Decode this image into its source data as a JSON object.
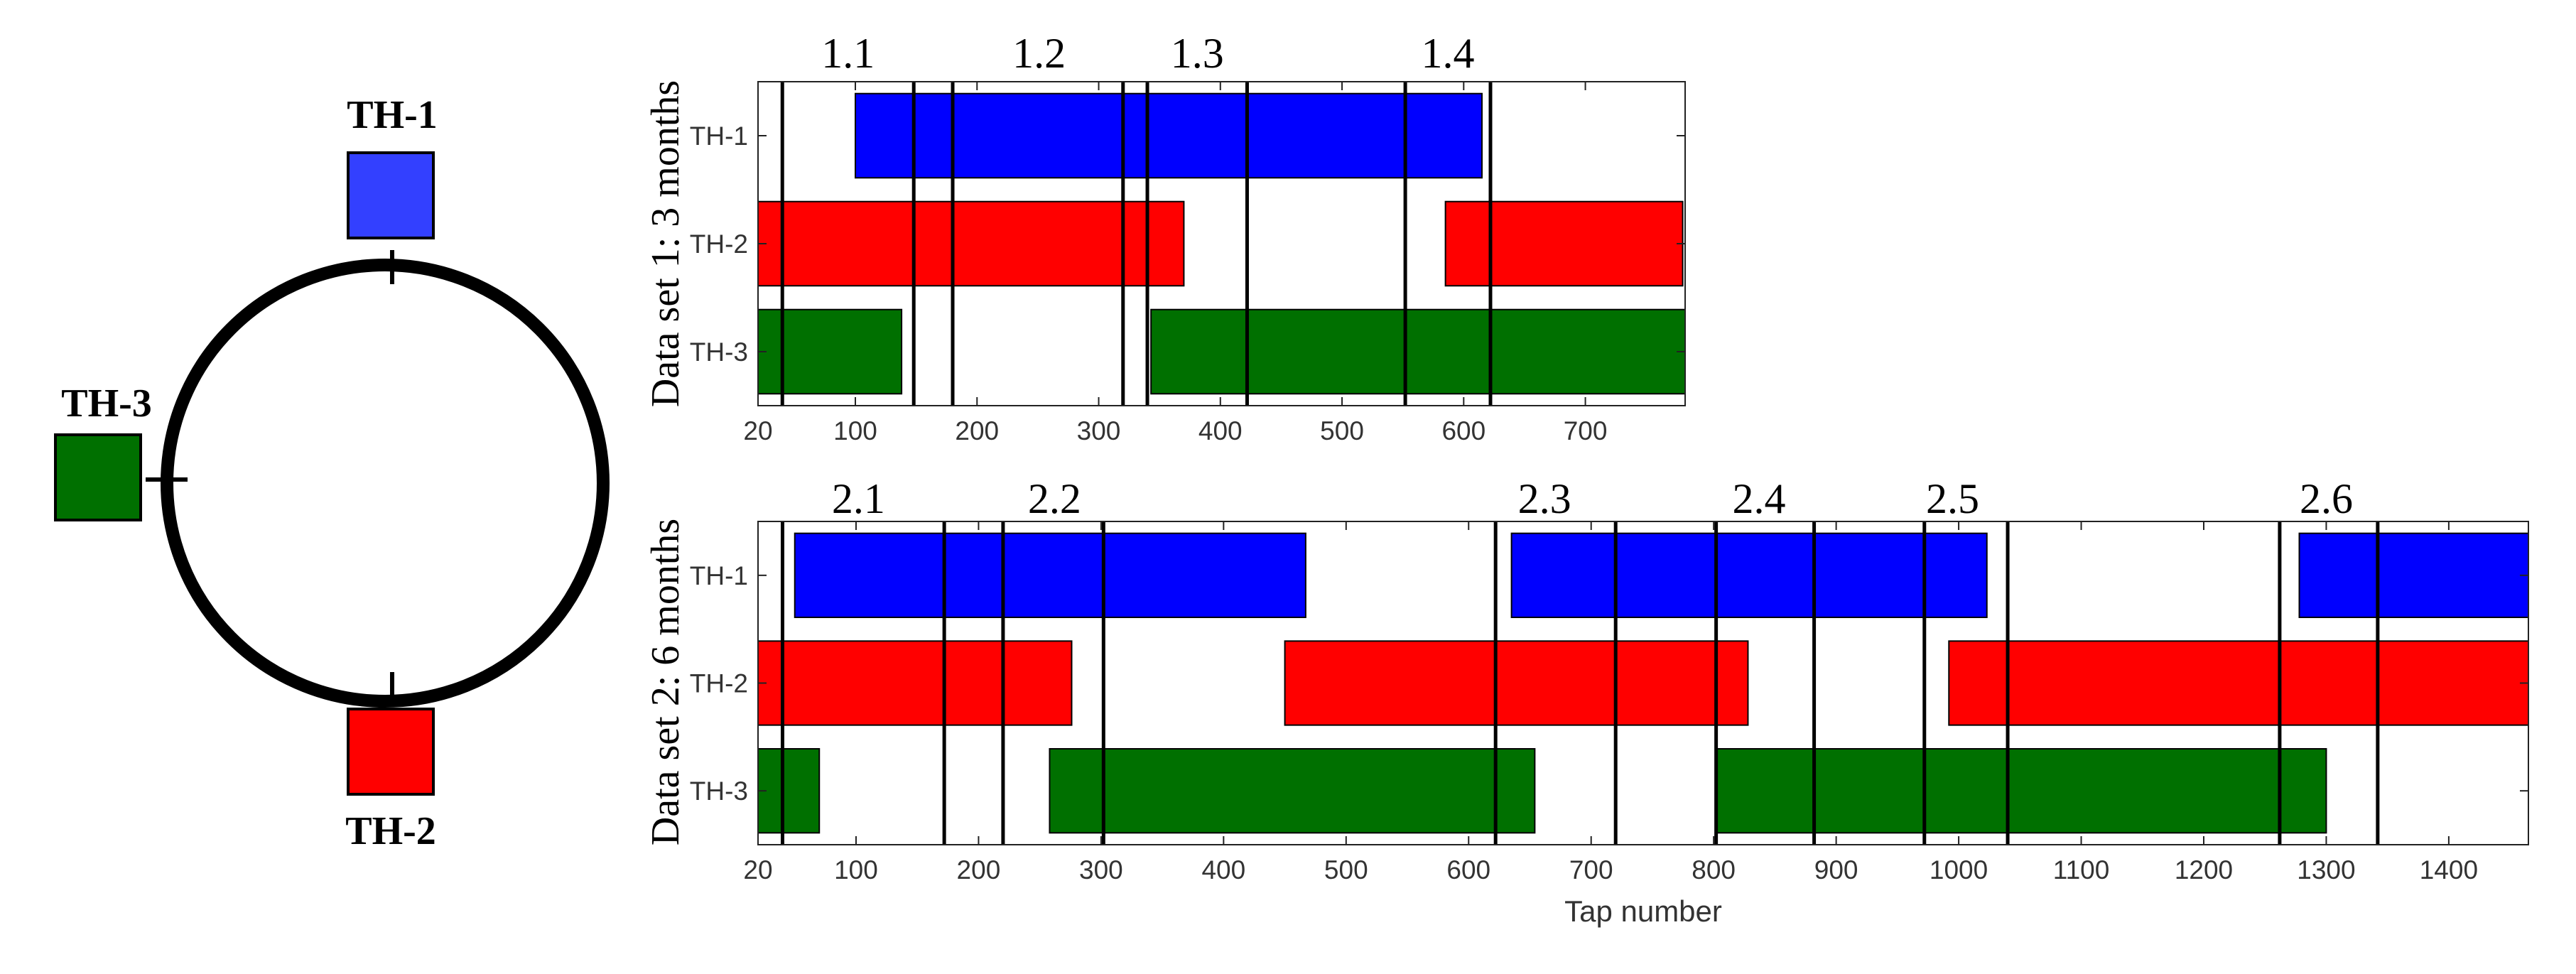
{
  "figure": {
    "ring": {
      "stations": [
        {
          "name": "TH-1",
          "color": "#3340FF"
        },
        {
          "name": "TH-2",
          "color": "#FF0000"
        },
        {
          "name": "TH-3",
          "color": "#007000"
        }
      ]
    }
  },
  "chart_data": [
    {
      "type": "bar",
      "subtype": "gantt-timeline",
      "ylabel": "Data set 1: 3 months",
      "xlabel": "",
      "xlim": [
        20,
        782
      ],
      "xticks": [
        20,
        100,
        200,
        300,
        400,
        500,
        600,
        700
      ],
      "categories": [
        "TH-1",
        "TH-2",
        "TH-3"
      ],
      "series": [
        {
          "name": "TH-1",
          "color": "#0000FF",
          "intervals": [
            [
              100,
              615
            ]
          ]
        },
        {
          "name": "TH-2",
          "color": "#FF0000",
          "intervals": [
            [
              20,
              370
            ],
            [
              585,
              780
            ]
          ]
        },
        {
          "name": "TH-3",
          "color": "#007000",
          "intervals": [
            [
              20,
              138
            ],
            [
              343,
              782
            ]
          ]
        }
      ],
      "vlines": [
        40,
        148,
        180,
        320,
        340,
        422,
        552,
        622
      ],
      "annotations": [
        {
          "text": "1.1",
          "x": 94
        },
        {
          "text": "1.2",
          "x": 251
        },
        {
          "text": "1.3",
          "x": 381
        },
        {
          "text": "1.4",
          "x": 587
        }
      ],
      "grid": false
    },
    {
      "type": "bar",
      "subtype": "gantt-timeline",
      "ylabel": "Data set 2: 6 months",
      "xlabel": "Tap number",
      "xlim": [
        20,
        1465
      ],
      "xticks": [
        20,
        100,
        200,
        300,
        400,
        500,
        600,
        700,
        800,
        900,
        1000,
        1100,
        1200,
        1300,
        1400
      ],
      "categories": [
        "TH-1",
        "TH-2",
        "TH-3"
      ],
      "series": [
        {
          "name": "TH-1",
          "color": "#0000FF",
          "intervals": [
            [
              50,
              467
            ],
            [
              635,
              1023
            ],
            [
              1278,
              1465
            ]
          ]
        },
        {
          "name": "TH-2",
          "color": "#FF0000",
          "intervals": [
            [
              20,
              276
            ],
            [
              450,
              828
            ],
            [
              992,
              1465
            ]
          ]
        },
        {
          "name": "TH-3",
          "color": "#007000",
          "intervals": [
            [
              20,
              70
            ],
            [
              258,
              654
            ],
            [
              802,
              1300
            ]
          ]
        }
      ],
      "vlines": [
        40,
        172,
        220,
        302,
        622,
        720,
        802,
        882,
        972,
        1040,
        1262,
        1342
      ],
      "annotations": [
        {
          "text": "2.1",
          "x": 102
        },
        {
          "text": "2.2",
          "x": 262
        },
        {
          "text": "2.3",
          "x": 662
        },
        {
          "text": "2.4",
          "x": 837
        },
        {
          "text": "2.5",
          "x": 995
        },
        {
          "text": "2.6",
          "x": 1300
        }
      ],
      "grid": false
    }
  ]
}
